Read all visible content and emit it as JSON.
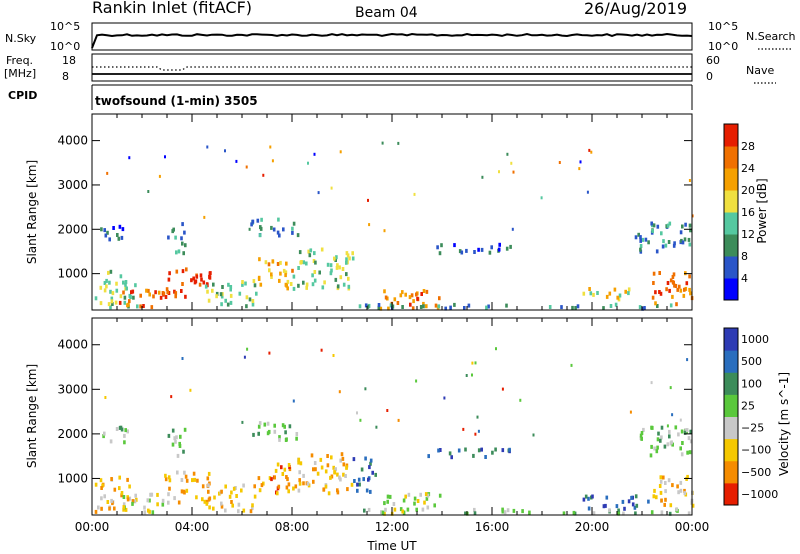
{
  "header": {
    "station": "Rankin Inlet (fitACF)",
    "beam": "Beam 04",
    "date": "26/Aug/2019"
  },
  "noise_panel": {
    "left_label": "N.Sky",
    "left_ticks": [
      "10^5",
      "10^0"
    ],
    "right_label": "N.Search",
    "right_ticks": [
      "10^5",
      "10^0"
    ]
  },
  "freq_panel": {
    "left_label_1": "Freq.",
    "left_label_2": "[MHz]",
    "left_ticks": [
      "18",
      "8"
    ],
    "right_label": "Nave",
    "right_ticks": [
      "60",
      "0"
    ]
  },
  "cpid_panel": {
    "label": "CPID",
    "program": "twofsound (1-min) 3505"
  },
  "colors": {
    "power": [
      "#0000ff",
      "#2a55c8",
      "#3c8c5a",
      "#55c8a0",
      "#f0e040",
      "#f5a000",
      "#f07000",
      "#e61e00"
    ],
    "velocity": [
      "#2e3bb4",
      "#2a6ebe",
      "#3c8c5a",
      "#5ac83c",
      "#c8c8c8",
      "#f5c800",
      "#f58c00",
      "#e61e00"
    ]
  },
  "chart_data": [
    {
      "type": "heatmap",
      "parameter": "Power",
      "ylabel": "Slant Range [km]",
      "ylim": [
        180,
        4600
      ],
      "y_ticks": [
        "1000",
        "2000",
        "3000",
        "4000"
      ],
      "y_tick_values": [
        1000,
        2000,
        3000,
        4000
      ],
      "x_range_hours": [
        0,
        24
      ],
      "colorbar": {
        "label": "Power [dB]",
        "ticks": [
          "4",
          "8",
          "12",
          "16",
          "20",
          "24",
          "28"
        ],
        "range": [
          0,
          32
        ]
      },
      "blobs": [
        {
          "t0": 0.1,
          "t1": 1.8,
          "r0": 280,
          "r1": 1100,
          "level": 3
        },
        {
          "t0": 1.0,
          "t1": 2.8,
          "r0": 280,
          "r1": 700,
          "level": 6
        },
        {
          "t0": 2.8,
          "t1": 4.7,
          "r0": 500,
          "r1": 1200,
          "level": 7
        },
        {
          "t0": 4.5,
          "t1": 6.6,
          "r0": 300,
          "r1": 900,
          "level": 3
        },
        {
          "t0": 6.6,
          "t1": 8.0,
          "r0": 700,
          "r1": 1400,
          "level": 5
        },
        {
          "t0": 8.0,
          "t1": 10.4,
          "r0": 700,
          "r1": 1600,
          "level": 3
        },
        {
          "t0": 11.5,
          "t1": 14.0,
          "r0": 250,
          "r1": 700,
          "level": 6
        },
        {
          "t0": 10.4,
          "t1": 24.0,
          "r0": 250,
          "r1": 350,
          "level": 2
        },
        {
          "t0": 19.3,
          "t1": 21.5,
          "r0": 450,
          "r1": 700,
          "level": 4
        },
        {
          "t0": 22.3,
          "t1": 24.0,
          "r0": 350,
          "r1": 1100,
          "level": 6
        },
        {
          "t0": 21.7,
          "t1": 24.0,
          "r0": 1500,
          "r1": 2200,
          "level": 2
        },
        {
          "t0": 0.3,
          "t1": 1.4,
          "r0": 1800,
          "r1": 2200,
          "level": 1
        },
        {
          "t0": 3.0,
          "t1": 3.7,
          "r0": 1500,
          "r1": 2200,
          "level": 2
        },
        {
          "t0": 6.3,
          "t1": 8.3,
          "r0": 1900,
          "r1": 2300,
          "level": 2
        },
        {
          "t0": 13.4,
          "t1": 16.8,
          "r0": 1500,
          "r1": 1700,
          "level": 1
        }
      ]
    },
    {
      "type": "heatmap",
      "parameter": "Velocity",
      "ylabel": "Slant Range [km]",
      "ylim": [
        180,
        4600
      ],
      "y_ticks": [
        "1000",
        "2000",
        "3000",
        "4000"
      ],
      "y_tick_values": [
        1000,
        2000,
        3000,
        4000
      ],
      "x_range_hours": [
        0,
        24
      ],
      "x_ticks": [
        "00:00",
        "04:00",
        "08:00",
        "12:00",
        "16:00",
        "20:00",
        "00:00"
      ],
      "xlabel": "Time UT",
      "colorbar": {
        "label": "Velocity [m s^-1]",
        "ticks": [
          "1000",
          "500",
          "100",
          "25",
          "−25",
          "−100",
          "−500",
          "−1000"
        ]
      },
      "blobs": [
        {
          "t0": 0.1,
          "t1": 1.8,
          "r0": 280,
          "r1": 1100,
          "level": 2
        },
        {
          "t0": 1.0,
          "t1": 2.8,
          "r0": 280,
          "r1": 700,
          "level": 3
        },
        {
          "t0": 2.8,
          "t1": 4.7,
          "r0": 500,
          "r1": 1200,
          "level": 2
        },
        {
          "t0": 4.5,
          "t1": 6.6,
          "r0": 300,
          "r1": 900,
          "level": 2
        },
        {
          "t0": 6.6,
          "t1": 8.0,
          "r0": 700,
          "r1": 1400,
          "level": 1
        },
        {
          "t0": 8.0,
          "t1": 10.4,
          "r0": 700,
          "r1": 1600,
          "level": 2
        },
        {
          "t0": 10.4,
          "t1": 11.3,
          "r0": 700,
          "r1": 1500,
          "level": 6
        },
        {
          "t0": 11.5,
          "t1": 14.0,
          "r0": 250,
          "r1": 700,
          "level": 3
        },
        {
          "t0": 10.4,
          "t1": 24.0,
          "r0": 250,
          "r1": 350,
          "level": 4
        },
        {
          "t0": 19.6,
          "t1": 22.3,
          "r0": 350,
          "r1": 650,
          "level": 6
        },
        {
          "t0": 22.3,
          "t1": 24.0,
          "r0": 350,
          "r1": 1100,
          "level": 2
        },
        {
          "t0": 21.7,
          "t1": 24.0,
          "r0": 1500,
          "r1": 2200,
          "level": 4
        },
        {
          "t0": 0.3,
          "t1": 1.4,
          "r0": 1800,
          "r1": 2200,
          "level": 4
        },
        {
          "t0": 3.0,
          "t1": 3.7,
          "r0": 1500,
          "r1": 2200,
          "level": 4
        },
        {
          "t0": 6.3,
          "t1": 8.3,
          "r0": 1900,
          "r1": 2300,
          "level": 4
        },
        {
          "t0": 13.4,
          "t1": 16.8,
          "r0": 1500,
          "r1": 1700,
          "level": 6
        }
      ]
    }
  ]
}
